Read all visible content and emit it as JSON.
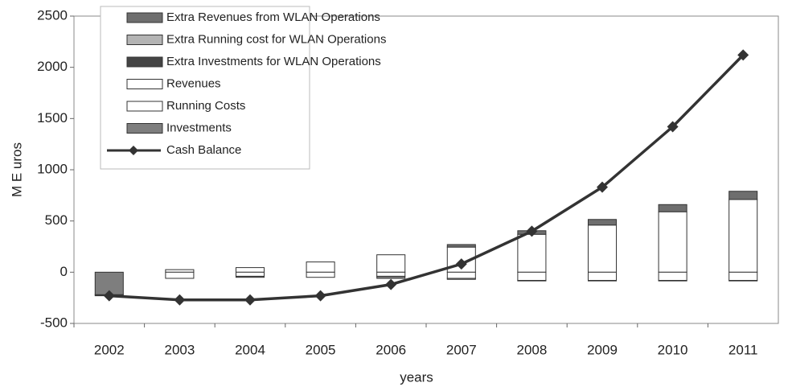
{
  "chart_data": {
    "type": "bar",
    "xlabel": "years",
    "ylabel": "M E uros",
    "categories": [
      "2002",
      "2003",
      "2004",
      "2005",
      "2006",
      "2007",
      "2008",
      "2009",
      "2010",
      "2011"
    ],
    "ylim": [
      -500,
      2500
    ],
    "yticks": [
      -500,
      0,
      500,
      1000,
      1500,
      2000,
      2500
    ],
    "grid": false,
    "series": [
      {
        "name": "Extra Revenues from WLAN Operations",
        "color": "#6e6e6e",
        "values": [
          0,
          0,
          0,
          0,
          0,
          25,
          35,
          55,
          70,
          80
        ]
      },
      {
        "name": "Extra Running cost for WLAN Operations",
        "color": "#b4b4b4",
        "values": [
          0,
          0,
          0,
          0,
          0,
          -10,
          -5,
          -5,
          -5,
          -5
        ]
      },
      {
        "name": "Extra Investments for WLAN Operations",
        "color": "#444444",
        "values": [
          -10,
          0,
          0,
          0,
          0,
          0,
          0,
          0,
          0,
          0
        ]
      },
      {
        "name": "Revenues",
        "color": "#ffffff",
        "values": [
          0,
          25,
          45,
          100,
          170,
          245,
          370,
          460,
          590,
          710
        ]
      },
      {
        "name": "Running Costs",
        "color": "#ffffff",
        "values": [
          0,
          -60,
          -40,
          -50,
          -40,
          -60,
          -80,
          -80,
          -80,
          -80
        ]
      },
      {
        "name": "Investments",
        "color": "#7e7e7e",
        "values": [
          -220,
          0,
          -10,
          0,
          -20,
          0,
          0,
          0,
          0,
          0
        ]
      },
      {
        "name": "Cash Balance",
        "color": "#333333",
        "type": "line",
        "values": [
          -230,
          -270,
          -270,
          -230,
          -120,
          80,
          400,
          830,
          1420,
          2120
        ]
      }
    ]
  }
}
